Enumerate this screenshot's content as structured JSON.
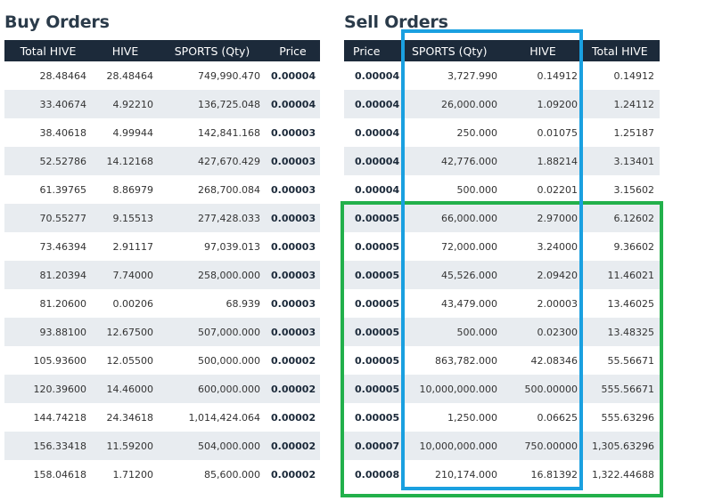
{
  "buy": {
    "title": "Buy Orders",
    "headers": [
      "Total HIVE",
      "HIVE",
      "SPORTS (Qty)",
      "Price"
    ],
    "rows": [
      [
        "28.48464",
        "28.48464",
        "749,990.470",
        "0.00004"
      ],
      [
        "33.40674",
        "4.92210",
        "136,725.048",
        "0.00004"
      ],
      [
        "38.40618",
        "4.99944",
        "142,841.168",
        "0.00003"
      ],
      [
        "52.52786",
        "14.12168",
        "427,670.429",
        "0.00003"
      ],
      [
        "61.39765",
        "8.86979",
        "268,700.084",
        "0.00003"
      ],
      [
        "70.55277",
        "9.15513",
        "277,428.033",
        "0.00003"
      ],
      [
        "73.46394",
        "2.91117",
        "97,039.013",
        "0.00003"
      ],
      [
        "81.20394",
        "7.74000",
        "258,000.000",
        "0.00003"
      ],
      [
        "81.20600",
        "0.00206",
        "68.939",
        "0.00003"
      ],
      [
        "93.88100",
        "12.67500",
        "507,000.000",
        "0.00003"
      ],
      [
        "105.93600",
        "12.05500",
        "500,000.000",
        "0.00002"
      ],
      [
        "120.39600",
        "14.46000",
        "600,000.000",
        "0.00002"
      ],
      [
        "144.74218",
        "24.34618",
        "1,014,424.064",
        "0.00002"
      ],
      [
        "156.33418",
        "11.59200",
        "504,000.000",
        "0.00002"
      ],
      [
        "158.04618",
        "1.71200",
        "85,600.000",
        "0.00002"
      ]
    ]
  },
  "sell": {
    "title": "Sell Orders",
    "headers": [
      "Price",
      "SPORTS (Qty)",
      "HIVE",
      "Total HIVE"
    ],
    "rows": [
      [
        "0.00004",
        "3,727.990",
        "0.14912",
        "0.14912"
      ],
      [
        "0.00004",
        "26,000.000",
        "1.09200",
        "1.24112"
      ],
      [
        "0.00004",
        "250.000",
        "0.01075",
        "1.25187"
      ],
      [
        "0.00004",
        "42,776.000",
        "1.88214",
        "3.13401"
      ],
      [
        "0.00004",
        "500.000",
        "0.02201",
        "3.15602"
      ],
      [
        "0.00005",
        "66,000.000",
        "2.97000",
        "6.12602"
      ],
      [
        "0.00005",
        "72,000.000",
        "3.24000",
        "9.36602"
      ],
      [
        "0.00005",
        "45,526.000",
        "2.09420",
        "11.46021"
      ],
      [
        "0.00005",
        "43,479.000",
        "2.00003",
        "13.46025"
      ],
      [
        "0.00005",
        "500.000",
        "0.02300",
        "13.48325"
      ],
      [
        "0.00005",
        "863,782.000",
        "42.08346",
        "55.56671"
      ],
      [
        "0.00005",
        "10,000,000.000",
        "500.00000",
        "555.56671"
      ],
      [
        "0.00005",
        "1,250.000",
        "0.06625",
        "555.63296"
      ],
      [
        "0.00007",
        "10,000,000.000",
        "750.00000",
        "1,305.63296"
      ],
      [
        "0.00008",
        "210,174.000",
        "16.81392",
        "1,322.44688"
      ]
    ]
  },
  "colors": {
    "header_bg": "#1c2a3a",
    "stripe": "#e8ecf0",
    "blue_highlight": "#1aa0e0",
    "green_highlight": "#22b04b"
  }
}
